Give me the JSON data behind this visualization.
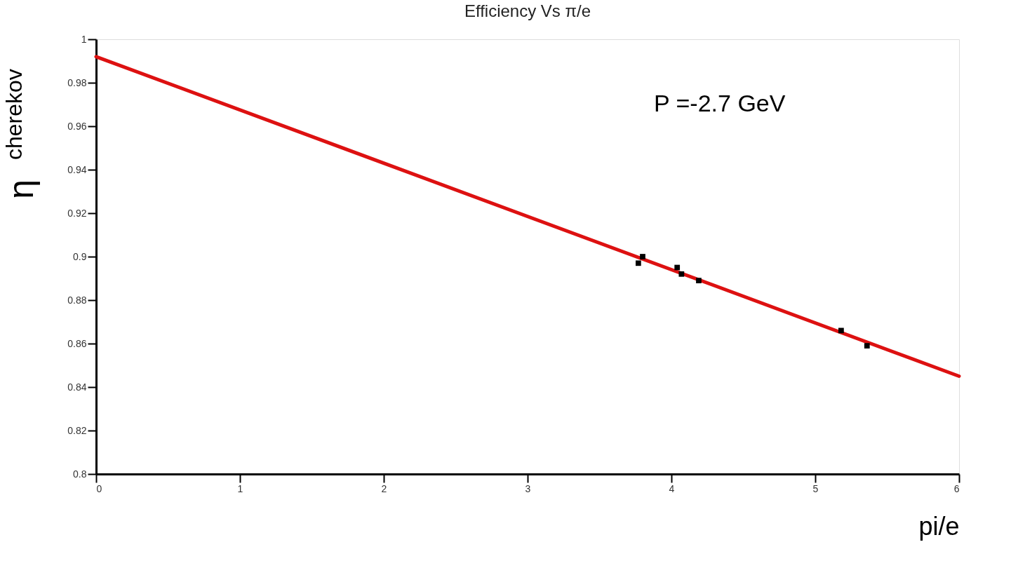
{
  "chart_data": {
    "type": "scatter",
    "title": "Efficiency Vs π/e",
    "xlabel": "pi/e",
    "ylabel": "η$^{cherekov}$",
    "annotations": [
      "P =-2.7 GeV"
    ],
    "series": [
      {
        "color": "#000000",
        "marker": "square",
        "x": [
          3.77,
          3.8,
          4.04,
          4.07,
          4.19,
          5.18,
          5.36
        ],
        "values": [
          0.897,
          0.9,
          0.895,
          0.892,
          0.889,
          0.866,
          0.859
        ]
      },
      {
        "type": "line",
        "color": "#dd1111",
        "x": [
          0,
          6
        ],
        "values": [
          0.992,
          0.845
        ]
      }
    ],
    "xlim": [
      0,
      6
    ],
    "ylim": [
      0.8,
      1
    ],
    "xticks": [
      0,
      1,
      2,
      3,
      4,
      5,
      6
    ],
    "yticks": [
      0.8,
      0.82,
      0.84,
      0.86,
      0.88,
      0.9,
      0.92,
      0.94,
      0.96,
      0.98,
      1
    ],
    "grid": false,
    "legend": false
  }
}
